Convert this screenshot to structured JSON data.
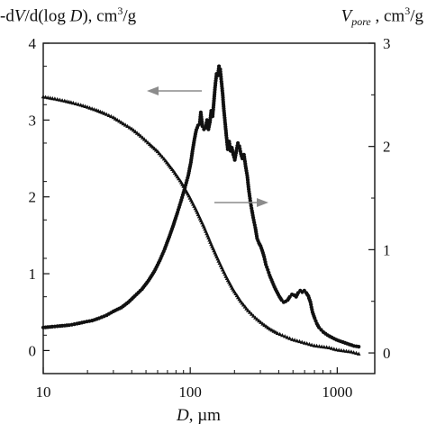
{
  "chart_data": {
    "type": "scatter",
    "title": "",
    "xlabel": {
      "var": "D",
      "unit": ", µm"
    },
    "ylabel_left": {
      "prefix": "-d",
      "var1": "V",
      "mid": "/d(log ",
      "var2": "D",
      "suffix": "), cm",
      "sup": "3",
      "tail": "/g"
    },
    "ylabel_right": {
      "var": "V",
      "sub": "pore",
      "mid": " , cm",
      "sup": "3",
      "tail": "/g"
    },
    "x_scale": "log",
    "xlim": [
      10,
      1800
    ],
    "ylim_left": [
      -0.3,
      4
    ],
    "ylim_right": [
      -0.2,
      3
    ],
    "x_ticks": [
      10,
      100,
      1000
    ],
    "x_tick_labels": [
      "10",
      "100",
      "1000"
    ],
    "y_left_ticks": [
      0,
      1,
      2,
      3,
      4
    ],
    "y_left_tick_labels": [
      "0",
      "1",
      "2",
      "3",
      "4"
    ],
    "y_right_ticks": [
      0,
      1,
      2,
      3
    ],
    "y_right_tick_labels": [
      "0",
      "1",
      "2",
      "3"
    ],
    "grid": false,
    "marker_color": "#111111",
    "connector_color": "#9a9a9a",
    "series": [
      {
        "axis": "left",
        "marker": "circle",
        "points": [
          [
            10,
            0.3
          ],
          [
            11.5,
            0.31
          ],
          [
            13,
            0.32
          ],
          [
            15,
            0.33
          ],
          [
            17,
            0.35
          ],
          [
            19,
            0.37
          ],
          [
            21.5,
            0.39
          ],
          [
            24,
            0.42
          ],
          [
            27,
            0.46
          ],
          [
            30,
            0.51
          ],
          [
            34,
            0.56
          ],
          [
            38,
            0.63
          ],
          [
            42,
            0.71
          ],
          [
            47,
            0.8
          ],
          [
            52,
            0.91
          ],
          [
            57,
            1.03
          ],
          [
            62,
            1.17
          ],
          [
            67,
            1.32
          ],
          [
            72,
            1.48
          ],
          [
            77,
            1.64
          ],
          [
            82,
            1.8
          ],
          [
            87,
            1.96
          ],
          [
            92,
            2.12
          ],
          [
            97,
            2.28
          ],
          [
            101,
            2.45
          ],
          [
            104,
            2.62
          ],
          [
            107,
            2.76
          ],
          [
            110,
            2.87
          ],
          [
            113,
            2.93
          ],
          [
            116,
            2.95
          ],
          [
            118,
            3.1
          ],
          [
            121,
            2.92
          ],
          [
            124,
            2.88
          ],
          [
            127,
            2.9
          ],
          [
            130,
            3.0
          ],
          [
            133,
            2.88
          ],
          [
            136,
            2.97
          ],
          [
            139,
            3.12
          ],
          [
            142,
            3.05
          ],
          [
            145,
            3.25
          ],
          [
            148,
            3.45
          ],
          [
            151,
            3.6
          ],
          [
            154,
            3.58
          ],
          [
            157,
            3.7
          ],
          [
            160,
            3.66
          ],
          [
            163,
            3.5
          ],
          [
            166,
            3.35
          ],
          [
            169,
            3.15
          ],
          [
            172,
            3.0
          ],
          [
            176,
            2.8
          ],
          [
            180,
            2.62
          ],
          [
            184,
            2.72
          ],
          [
            188,
            2.6
          ],
          [
            192,
            2.64
          ],
          [
            196,
            2.55
          ],
          [
            201,
            2.48
          ],
          [
            206,
            2.6
          ],
          [
            211,
            2.7
          ],
          [
            216,
            2.66
          ],
          [
            221,
            2.56
          ],
          [
            226,
            2.5
          ],
          [
            232,
            2.55
          ],
          [
            238,
            2.4
          ],
          [
            244,
            2.28
          ],
          [
            250,
            2.1
          ],
          [
            256,
            1.95
          ],
          [
            263,
            1.82
          ],
          [
            270,
            1.7
          ],
          [
            277,
            1.6
          ],
          [
            285,
            1.46
          ],
          [
            293,
            1.4
          ],
          [
            301,
            1.36
          ],
          [
            309,
            1.3
          ],
          [
            318,
            1.22
          ],
          [
            327,
            1.12
          ],
          [
            337,
            1.05
          ],
          [
            347,
            0.98
          ],
          [
            357,
            0.92
          ],
          [
            368,
            0.86
          ],
          [
            380,
            0.8
          ],
          [
            392,
            0.75
          ],
          [
            405,
            0.7
          ],
          [
            418,
            0.66
          ],
          [
            432,
            0.63
          ],
          [
            446,
            0.64
          ],
          [
            461,
            0.66
          ],
          [
            476,
            0.7
          ],
          [
            492,
            0.73
          ],
          [
            508,
            0.72
          ],
          [
            525,
            0.7
          ],
          [
            542,
            0.75
          ],
          [
            560,
            0.78
          ],
          [
            578,
            0.76
          ],
          [
            597,
            0.78
          ],
          [
            616,
            0.75
          ],
          [
            636,
            0.71
          ],
          [
            657,
            0.63
          ],
          [
            679,
            0.5
          ],
          [
            702,
            0.42
          ],
          [
            726,
            0.35
          ],
          [
            751,
            0.3
          ],
          [
            777,
            0.27
          ],
          [
            804,
            0.24
          ],
          [
            860,
            0.2
          ],
          [
            920,
            0.17
          ],
          [
            985,
            0.14
          ],
          [
            1055,
            0.12
          ],
          [
            1130,
            0.1
          ],
          [
            1210,
            0.08
          ],
          [
            1300,
            0.06
          ],
          [
            1400,
            0.05
          ]
        ]
      },
      {
        "axis": "right",
        "marker": "triangle",
        "points": [
          [
            10,
            2.48
          ],
          [
            12,
            2.46
          ],
          [
            14,
            2.44
          ],
          [
            16,
            2.42
          ],
          [
            18,
            2.4
          ],
          [
            20,
            2.38
          ],
          [
            23,
            2.35
          ],
          [
            26,
            2.32
          ],
          [
            30,
            2.28
          ],
          [
            35,
            2.22
          ],
          [
            40,
            2.17
          ],
          [
            46,
            2.1
          ],
          [
            53,
            2.02
          ],
          [
            60,
            1.95
          ],
          [
            68,
            1.86
          ],
          [
            77,
            1.76
          ],
          [
            87,
            1.65
          ],
          [
            98,
            1.52
          ],
          [
            110,
            1.38
          ],
          [
            124,
            1.22
          ],
          [
            139,
            1.05
          ],
          [
            156,
            0.89
          ],
          [
            175,
            0.74
          ],
          [
            196,
            0.61
          ],
          [
            220,
            0.5
          ],
          [
            247,
            0.41
          ],
          [
            277,
            0.34
          ],
          [
            311,
            0.28
          ],
          [
            349,
            0.23
          ],
          [
            392,
            0.19
          ],
          [
            440,
            0.16
          ],
          [
            494,
            0.13
          ],
          [
            554,
            0.11
          ],
          [
            622,
            0.09
          ],
          [
            698,
            0.07
          ],
          [
            784,
            0.06
          ],
          [
            880,
            0.05
          ],
          [
            988,
            0.03
          ],
          [
            1109,
            0.02
          ],
          [
            1245,
            0.01
          ],
          [
            1400,
            -0.01
          ]
        ]
      }
    ]
  }
}
